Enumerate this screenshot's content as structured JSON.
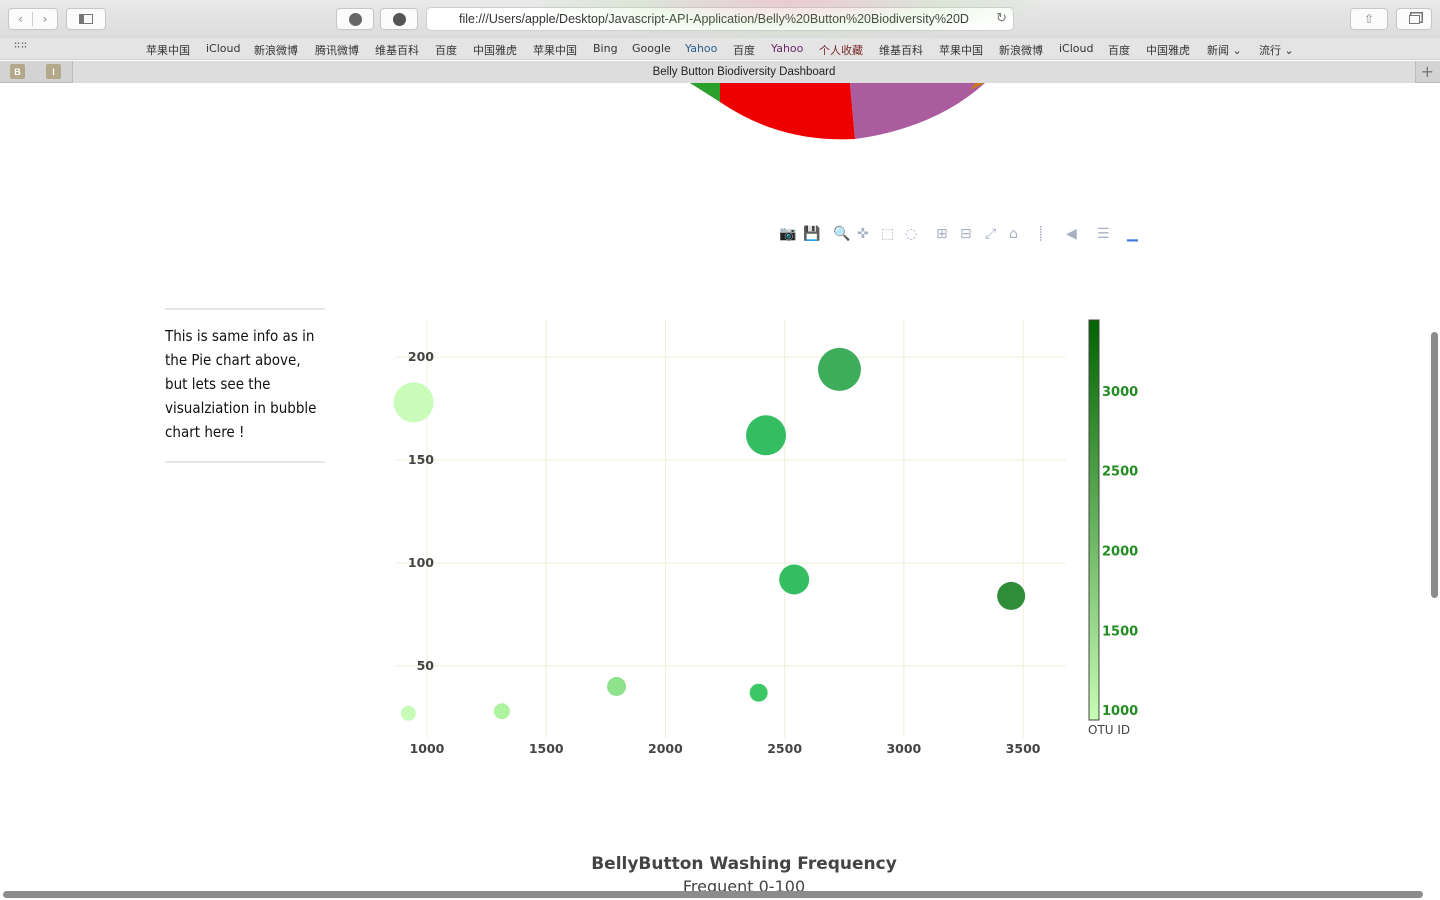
{
  "browser": {
    "url": "file:///Users/apple/Desktop/Javascript-API-Application/Belly%20Button%20Biodiversity%20D",
    "tab_title": "Belly Button Biodiversity Dashboard",
    "pinned_tabs": [
      "B",
      "I"
    ],
    "favorites": [
      "苹果中国",
      "iCloud",
      "新浪微博",
      "腾讯微博",
      "维基百科",
      "百度",
      "中国雅虎",
      "苹果中国",
      "Bing",
      "Google",
      "Yahoo",
      "百度",
      "Yahoo",
      "个人收藏",
      "维基百科",
      "苹果中国",
      "新浪微博",
      "iCloud",
      "百度",
      "中国雅虎",
      "新闻 ⌄",
      "流行 ⌄"
    ],
    "favorite_colors": [
      "#333333",
      "#333333",
      "#333333",
      "#333333",
      "#333333",
      "#333333",
      "#333333",
      "#333333",
      "#333333",
      "#333333",
      "#2c5f8a",
      "#333333",
      "#6a2a6a",
      "#7a2a2a",
      "#333333",
      "#333333",
      "#333333",
      "#333333",
      "#333333",
      "#333333",
      "#333333",
      "#333333"
    ]
  },
  "side_panel": {
    "text": "This is same info as in the Pie chart above, but lets see the visualziation in bubble chart here !"
  },
  "modebar_icons": [
    "camera-icon",
    "save-icon",
    "zoom-icon",
    "pan-icon",
    "box-select-icon",
    "lasso-icon",
    "zoom-in-icon",
    "zoom-out-icon",
    "autoscale-icon",
    "reset-axes-icon",
    "spike-lines-icon",
    "hover-closest-icon",
    "hover-compare-icon",
    "plotly-logo-icon"
  ],
  "pie_remnant": {
    "colors": [
      "#2ca02c",
      "#ee0000",
      "#aa5c9e"
    ]
  },
  "chart_data": {
    "type": "scatter",
    "mode": "bubble",
    "xlim": [
      870,
      3680
    ],
    "ylim": [
      15,
      218
    ],
    "xticks": [
      1000,
      1500,
      2000,
      2500,
      3000,
      3500
    ],
    "yticks": [
      50,
      100,
      150,
      200
    ],
    "grid": true,
    "grid_color": "#eef0d8",
    "colorbar": {
      "title": "OTU ID",
      "range": [
        944,
        3450
      ],
      "ticks": [
        1000,
        1500,
        2000,
        2500,
        3000
      ],
      "colorscale": [
        "#c7fdb4",
        "#006400"
      ],
      "tick_color": "#228b22"
    },
    "points": [
      {
        "x": 944,
        "y": 178,
        "size": 40,
        "color": "#c9fcb8"
      },
      {
        "x": 2730,
        "y": 194,
        "size": 43,
        "color": "#3dad5b"
      },
      {
        "x": 2422,
        "y": 162,
        "size": 40,
        "color": "#35be61"
      },
      {
        "x": 2540,
        "y": 92,
        "size": 30,
        "color": "#35be61"
      },
      {
        "x": 3450,
        "y": 84,
        "size": 28,
        "color": "#2f8c39"
      },
      {
        "x": 1795,
        "y": 40,
        "size": 19,
        "color": "#8ee38c"
      },
      {
        "x": 2391,
        "y": 37,
        "size": 18,
        "color": "#3bc766"
      },
      {
        "x": 1314,
        "y": 28,
        "size": 16,
        "color": "#adf3a0"
      },
      {
        "x": 922,
        "y": 27,
        "size": 15,
        "color": "#c8fbb8"
      }
    ]
  },
  "gauge": {
    "title": "BellyButton Washing Frequency",
    "subtitle": "Frequent 0-100"
  }
}
